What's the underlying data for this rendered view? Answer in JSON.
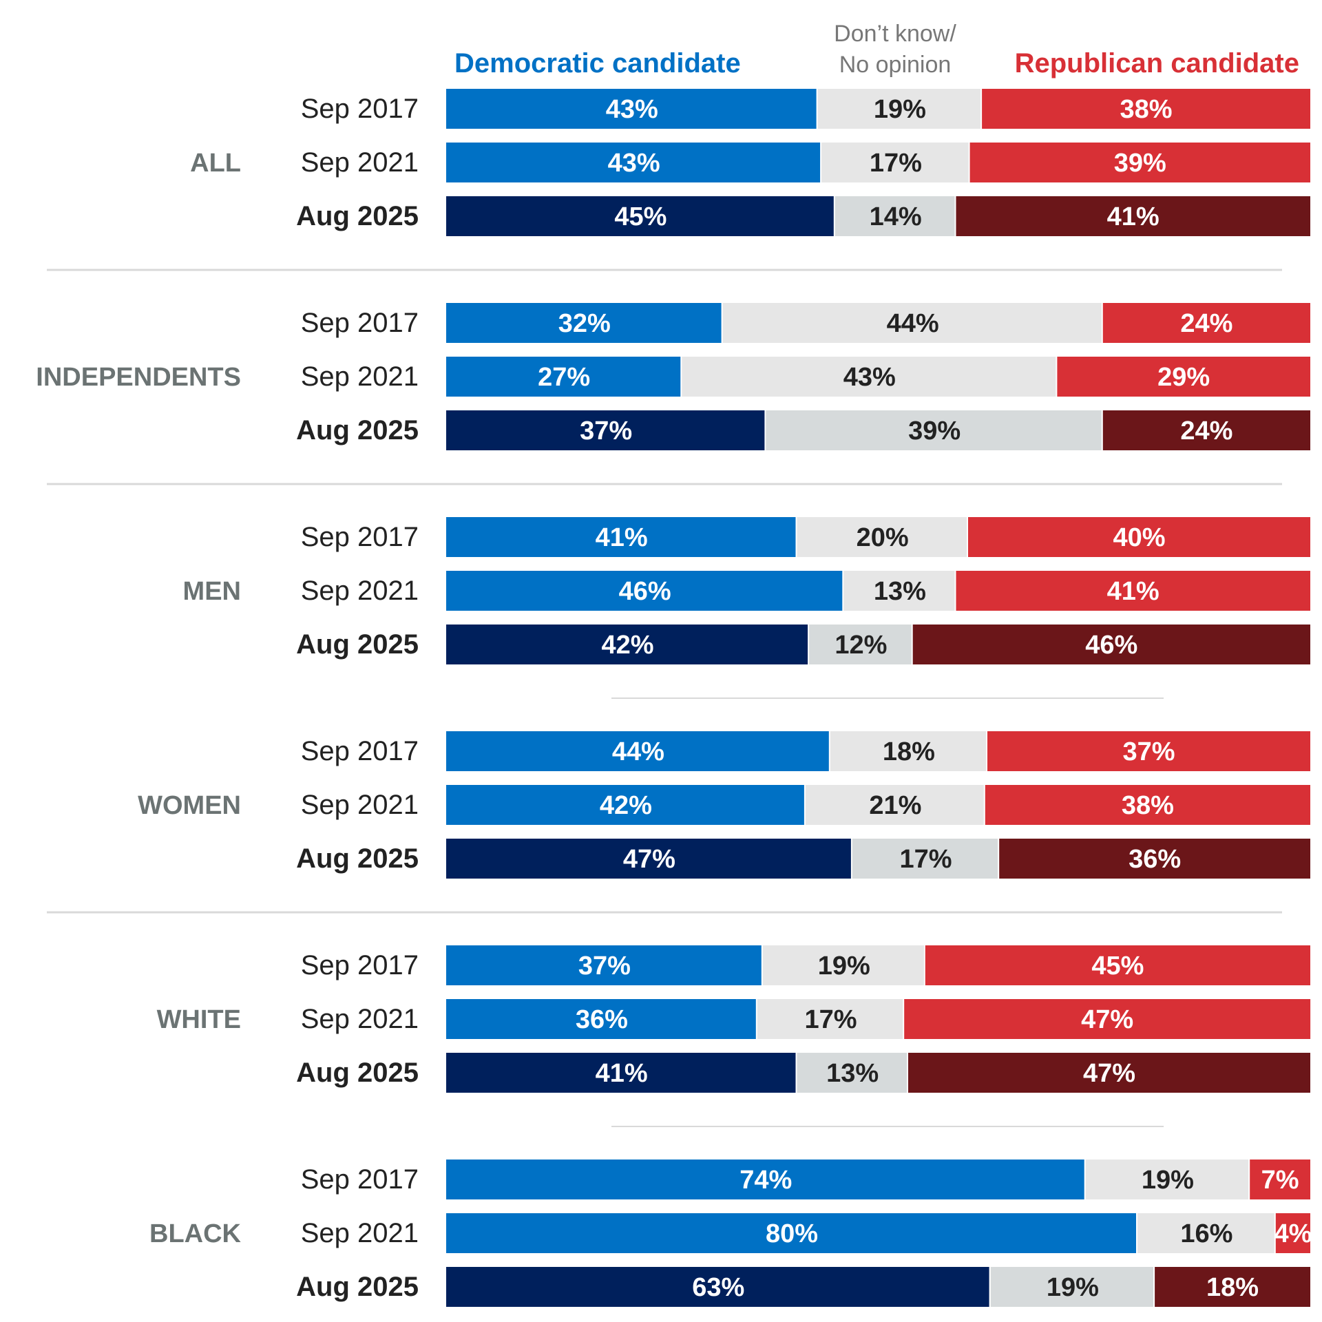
{
  "legend": {
    "dem": "Democratic candidate",
    "dk_line1": "Don’t know/",
    "dk_line2": "No opinion",
    "rep": "Republican candidate"
  },
  "colors": {
    "dem_past": "#0071c5",
    "dem_current": "#00205c",
    "dk_past": "#e6e6e6",
    "dk_current": "#d6dadb",
    "rep_past": "#d83036",
    "rep_current": "#6b1619",
    "group_label": "#6b7373",
    "row_label": "#222222",
    "legend_dk": "#777777",
    "divider": "#d9d9d9"
  },
  "chart_data": {
    "type": "bar",
    "orientation": "horizontal-stacked-100",
    "series": [
      "Democratic candidate",
      "Don’t know/ No opinion",
      "Republican candidate"
    ],
    "groups": [
      {
        "name": "ALL",
        "rows": [
          {
            "period": "Sep 2017",
            "values": [
              43,
              19,
              38
            ],
            "labels": [
              "43%",
              "19%",
              "38%"
            ]
          },
          {
            "period": "Sep 2021",
            "values": [
              43,
              17,
              39
            ],
            "labels": [
              "43%",
              "17%",
              "39%"
            ]
          },
          {
            "period": "Aug 2025",
            "values": [
              45,
              14,
              41
            ],
            "labels": [
              "45%",
              "14%",
              "41%"
            ],
            "current": true
          }
        ]
      },
      {
        "name": "INDEPENDENTS",
        "rows": [
          {
            "period": "Sep 2017",
            "values": [
              32,
              44,
              24
            ],
            "labels": [
              "32%",
              "44%",
              "24%"
            ]
          },
          {
            "period": "Sep 2021",
            "values": [
              27,
              43,
              29
            ],
            "labels": [
              "27%",
              "43%",
              "29%"
            ]
          },
          {
            "period": "Aug 2025",
            "values": [
              37,
              39,
              24
            ],
            "labels": [
              "37%",
              "39%",
              "24%"
            ],
            "current": true
          }
        ]
      },
      {
        "name": "MEN",
        "rows": [
          {
            "period": "Sep 2017",
            "values": [
              41,
              20,
              40
            ],
            "labels": [
              "41%",
              "20%",
              "40%"
            ]
          },
          {
            "period": "Sep 2021",
            "values": [
              46,
              13,
              41
            ],
            "labels": [
              "46%",
              "13%",
              "41%"
            ]
          },
          {
            "period": "Aug 2025",
            "values": [
              42,
              12,
              46
            ],
            "labels": [
              "42%",
              "12%",
              "46%"
            ],
            "current": true
          }
        ]
      },
      {
        "name": "WOMEN",
        "rows": [
          {
            "period": "Sep 2017",
            "values": [
              44,
              18,
              37
            ],
            "labels": [
              "44%",
              "18%",
              "37%"
            ]
          },
          {
            "period": "Sep 2021",
            "values": [
              42,
              21,
              38
            ],
            "labels": [
              "42%",
              "21%",
              "38%"
            ]
          },
          {
            "period": "Aug 2025",
            "values": [
              47,
              17,
              36
            ],
            "labels": [
              "47%",
              "17%",
              "36%"
            ],
            "current": true
          }
        ]
      },
      {
        "name": "WHITE",
        "rows": [
          {
            "period": "Sep 2017",
            "values": [
              37,
              19,
              45
            ],
            "labels": [
              "37%",
              "19%",
              "45%"
            ]
          },
          {
            "period": "Sep 2021",
            "values": [
              36,
              17,
              47
            ],
            "labels": [
              "36%",
              "17%",
              "47%"
            ]
          },
          {
            "period": "Aug 2025",
            "values": [
              41,
              13,
              47
            ],
            "labels": [
              "41%",
              "13%",
              "47%"
            ],
            "current": true
          }
        ]
      },
      {
        "name": "BLACK",
        "rows": [
          {
            "period": "Sep 2017",
            "values": [
              74,
              19,
              7
            ],
            "labels": [
              "74%",
              "19%",
              "7%"
            ]
          },
          {
            "period": "Sep 2021",
            "values": [
              80,
              16,
              4
            ],
            "labels": [
              "80%",
              "16%",
              "4%"
            ]
          },
          {
            "period": "Aug 2025",
            "values": [
              63,
              19,
              18
            ],
            "labels": [
              "63%",
              "19%",
              "18%"
            ],
            "current": true
          }
        ]
      }
    ],
    "dividers_after_groups": [
      {
        "after": "ALL",
        "style": "full"
      },
      {
        "after": "INDEPENDENTS",
        "style": "full"
      },
      {
        "after": "MEN",
        "style": "short"
      },
      {
        "after": "WOMEN",
        "style": "full"
      },
      {
        "after": "WHITE",
        "style": "short"
      }
    ]
  }
}
